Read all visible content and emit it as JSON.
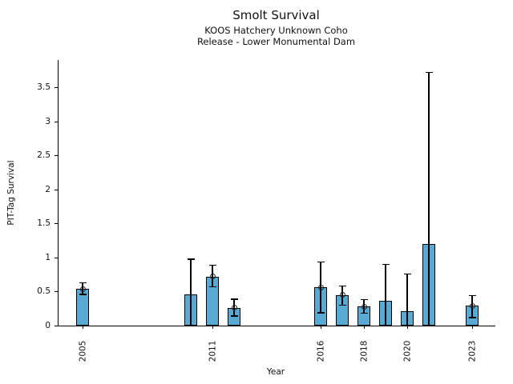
{
  "header": {
    "title": "Smolt Survival",
    "subtitle1": "KOOS Hatchery Unknown Coho",
    "subtitle2": "Release - Lower Monumental Dam"
  },
  "colors": {
    "bar_fill": "#58a9d4",
    "bar_edge": "#000000",
    "axis": "#000000",
    "text": "#111111"
  },
  "chart_data": {
    "type": "bar",
    "title": "Smolt Survival",
    "subtitles": [
      "KOOS Hatchery Unknown Coho",
      "Release - Lower Monumental Dam"
    ],
    "xlabel": "Year",
    "ylabel": "PIT-Tag Survival",
    "grid": false,
    "legend": "none",
    "ylim": [
      0,
      3.91
    ],
    "xlim": [
      2003.9,
      2024.1
    ],
    "y_ticks": [
      {
        "v": 0,
        "label": "0"
      },
      {
        "v": 0.5,
        "label": "0.5"
      },
      {
        "v": 1,
        "label": "1"
      },
      {
        "v": 1.5,
        "label": "1.5"
      },
      {
        "v": 2,
        "label": "2"
      },
      {
        "v": 2.5,
        "label": "2.5"
      },
      {
        "v": 3,
        "label": "3"
      },
      {
        "v": 3.5,
        "label": "3.5"
      }
    ],
    "x_ticks": [
      2005,
      2011,
      2016,
      2018,
      2020,
      2023
    ],
    "series": [
      {
        "name": "PIT-Tag Survival",
        "points": [
          {
            "year": 2005,
            "value": 0.54,
            "ci_low": 0.46,
            "ci_high": 0.63,
            "marker": true
          },
          {
            "year": 2010,
            "value": 0.46,
            "ci_low": 0.0,
            "ci_high": 0.98,
            "marker": false
          },
          {
            "year": 2011,
            "value": 0.72,
            "ci_low": 0.57,
            "ci_high": 0.89,
            "marker": true
          },
          {
            "year": 2012,
            "value": 0.26,
            "ci_low": 0.14,
            "ci_high": 0.39,
            "marker": true
          },
          {
            "year": 2016,
            "value": 0.56,
            "ci_low": 0.19,
            "ci_high": 0.94,
            "marker": true
          },
          {
            "year": 2017,
            "value": 0.45,
            "ci_low": 0.3,
            "ci_high": 0.58,
            "marker": true
          },
          {
            "year": 2018,
            "value": 0.28,
            "ci_low": 0.18,
            "ci_high": 0.38,
            "marker": true
          },
          {
            "year": 2019,
            "value": 0.36,
            "ci_low": 0.0,
            "ci_high": 0.9,
            "marker": false
          },
          {
            "year": 2020,
            "value": 0.21,
            "ci_low": 0.0,
            "ci_high": 0.76,
            "marker": false
          },
          {
            "year": 2021,
            "value": 1.2,
            "ci_low": 0.0,
            "ci_high": 3.73,
            "marker": false
          },
          {
            "year": 2023,
            "value": 0.29,
            "ci_low": 0.12,
            "ci_high": 0.44,
            "marker": true
          }
        ]
      }
    ]
  }
}
